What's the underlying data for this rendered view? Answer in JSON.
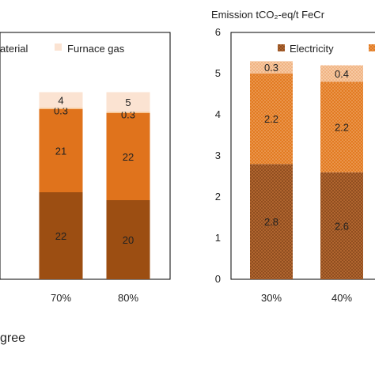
{
  "chart_data": [
    {
      "type": "bar",
      "stacked": true,
      "title": "",
      "xlabel": "gree",
      "ylabel": "",
      "categories": [
        "70%",
        "80%"
      ],
      "series": [
        {
          "name": "",
          "values": [
            22,
            20
          ],
          "labels": [
            "22",
            "20"
          ],
          "color": "#9c4e12"
        },
        {
          "name": "aterial",
          "values": [
            21,
            22
          ],
          "labels": [
            "21",
            "22"
          ],
          "color": "#e0731c"
        },
        {
          "name": "",
          "values": [
            0.3,
            0.3
          ],
          "labels": [
            "0.3",
            "0.3"
          ],
          "color": "#f7c590"
        },
        {
          "name": "Furnace gas",
          "values": [
            4,
            5
          ],
          "labels": [
            "4",
            "5"
          ],
          "color": "#fbe3d2"
        }
      ],
      "legend": {
        "placement": "top",
        "labels": [
          "aterial",
          "Furnace gas"
        ]
      }
    },
    {
      "type": "bar",
      "stacked": true,
      "title": "Emission tCO₂-eq/t FeCr",
      "xlabel": "",
      "ylabel": "",
      "categories": [
        "30%",
        "40%"
      ],
      "ylim": [
        0,
        6
      ],
      "yticks": [
        "0",
        "1",
        "2",
        "3",
        "4",
        "5",
        "6"
      ],
      "series": [
        {
          "name": "Electricity",
          "values": [
            2.8,
            2.6
          ],
          "labels": [
            "2.8",
            "2.6"
          ],
          "color": "#b0652f",
          "pattern": "dots"
        },
        {
          "name": "",
          "values": [
            2.2,
            2.2
          ],
          "labels": [
            "2.2",
            "2.2"
          ],
          "color": "#e27b22",
          "pattern": "dots"
        },
        {
          "name": "",
          "values": [
            0.3,
            0.4
          ],
          "labels": [
            "0.3",
            "0.4"
          ],
          "color": "#f7c9a2",
          "pattern": "dots"
        }
      ],
      "legend": {
        "placement": "top",
        "labels": [
          "Electricity",
          ""
        ]
      }
    }
  ]
}
